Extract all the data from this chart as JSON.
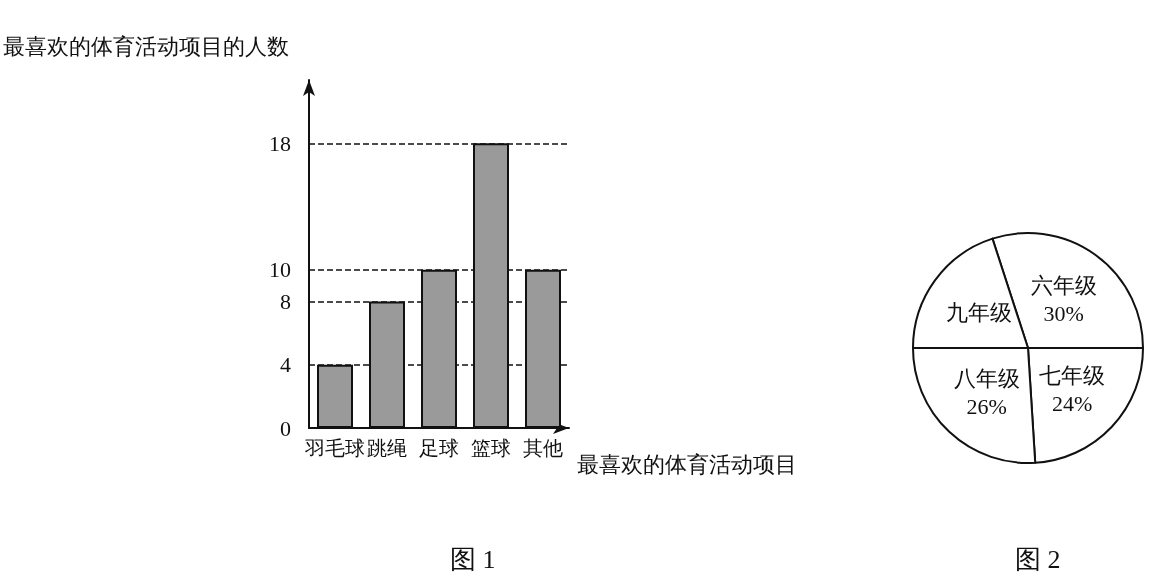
{
  "chart_data": [
    {
      "type": "bar",
      "title": "图 1",
      "xlabel": "最喜欢的体育活动项目",
      "ylabel": "最喜欢的体育活动项目的人数",
      "categories": [
        "羽毛球",
        "跳绳",
        "足球",
        "篮球",
        "其他"
      ],
      "values": [
        4,
        8,
        10,
        18,
        10
      ],
      "color": "#9a9a9a",
      "ylim": [
        0,
        22
      ],
      "yticks": [
        0,
        4,
        8,
        10,
        18
      ],
      "grid": "y",
      "line_style": "dashed"
    },
    {
      "type": "pie",
      "title": "图 2",
      "categories": [
        "六年级",
        "七年级",
        "八年级",
        "九年级"
      ],
      "values": [
        30,
        24,
        26,
        20
      ],
      "colors": [
        "#ffffff",
        "#ffffff",
        "#ffffff",
        "#ffffff"
      ],
      "value_labels": [
        "30%",
        "24%",
        "26%",
        null
      ]
    }
  ]
}
